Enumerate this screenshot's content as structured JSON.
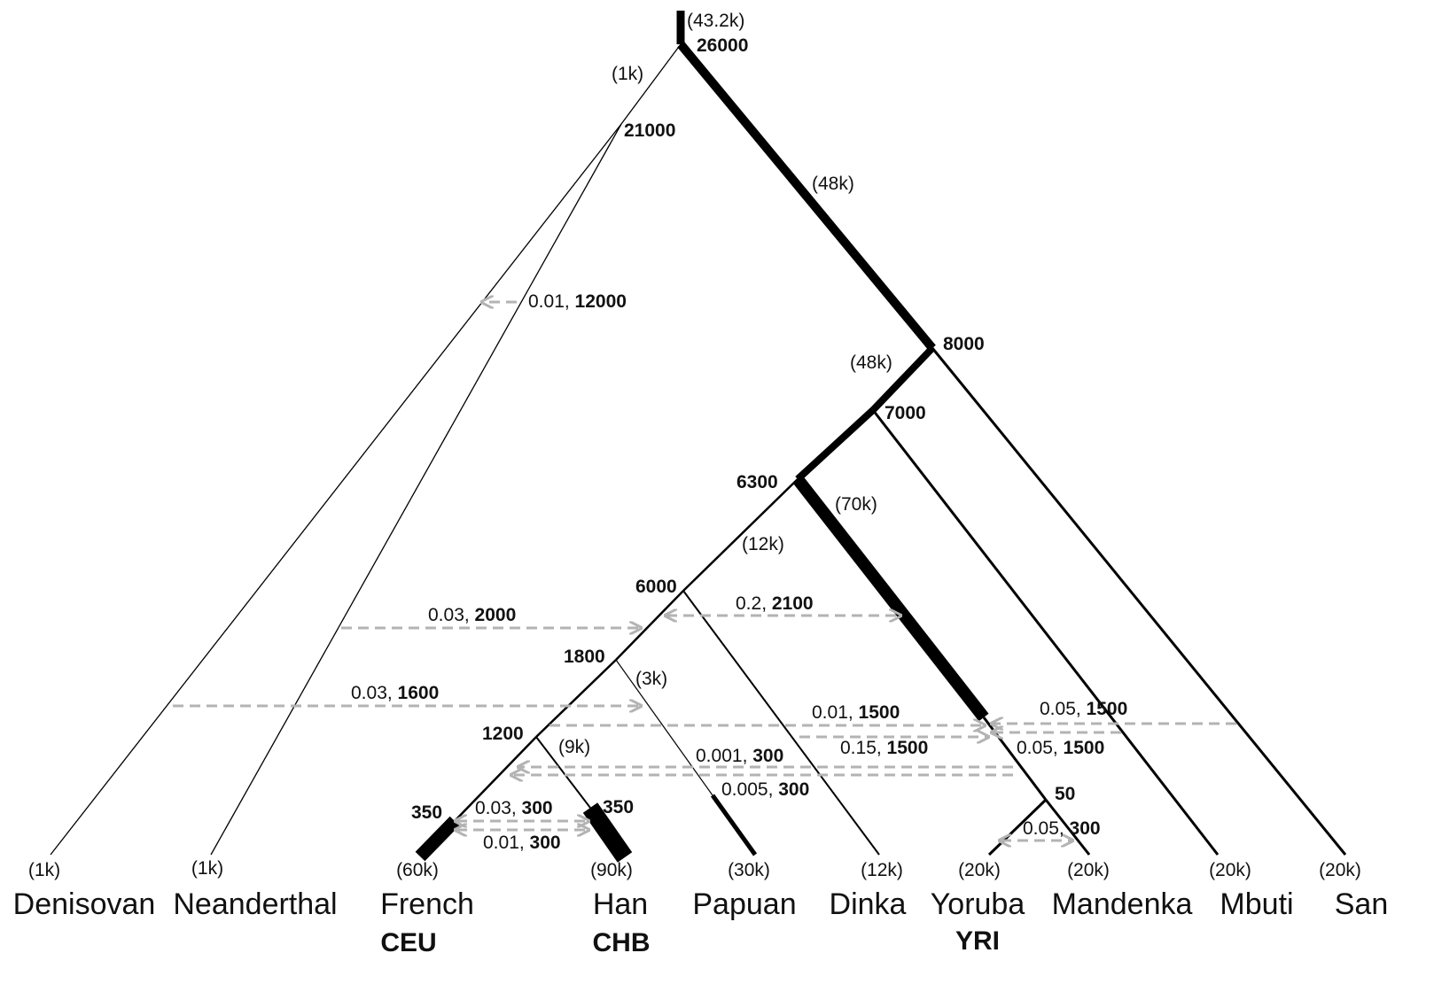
{
  "population_labels": {
    "denisovan": "Denisovan",
    "neanderthal": "Neanderthal",
    "french": "French",
    "han": "Han",
    "papuan": "Papuan",
    "dinka": "Dinka",
    "yoruba": "Yoruba",
    "mandenka": "Mandenka",
    "mbuti": "Mbuti",
    "san": "San"
  },
  "sample_codes": {
    "french": "CEU",
    "han": "CHB",
    "yoruba": "YRI"
  },
  "leaf_sizes": {
    "denisovan": "(1k)",
    "neanderthal": "(1k)",
    "french": "(60k)",
    "han": "(90k)",
    "papuan": "(30k)",
    "dinka": "(12k)",
    "yoruba": "(20k)",
    "mandenka": "(20k)",
    "mbuti": "(20k)",
    "san": "(20k)"
  },
  "split_times": {
    "root": "26000",
    "archaic": "21000",
    "san": "8000",
    "mbuti": "7000",
    "ooa": "6300",
    "dinka": "6000",
    "papuan": "1800",
    "eurasia": "1200",
    "french_bottleneck": "350",
    "han_bottleneck": "350",
    "yoruba_mandenka": "50"
  },
  "branch_sizes": {
    "root": "(43.2k)",
    "archaic": "(1k)",
    "african_stem": "(48k)",
    "african_stem2": "(48k)",
    "yri_mandenka": "(70k)",
    "ooa": "(12k)",
    "papuan": "(3k)",
    "han": "(9k)"
  },
  "migrations": [
    {
      "rate": "0.01",
      "time": "12000"
    },
    {
      "rate": "0.03",
      "time": "2000"
    },
    {
      "rate": "0.2",
      "time": "2100"
    },
    {
      "rate": "0.03",
      "time": "1600"
    },
    {
      "rate": "0.01",
      "time": "1500"
    },
    {
      "rate": "0.05",
      "time": "1500"
    },
    {
      "rate": "0.15",
      "time": "1500"
    },
    {
      "rate": "0.05",
      "time": "1500"
    },
    {
      "rate": "0.001",
      "time": "300"
    },
    {
      "rate": "0.005",
      "time": "300"
    },
    {
      "rate": "0.03",
      "time": "300"
    },
    {
      "rate": "0.01",
      "time": "300"
    },
    {
      "rate": "0.05",
      "time": "300"
    }
  ],
  "colors": {
    "branch": "#000000",
    "migration_arrow": "#b3b3b3"
  }
}
